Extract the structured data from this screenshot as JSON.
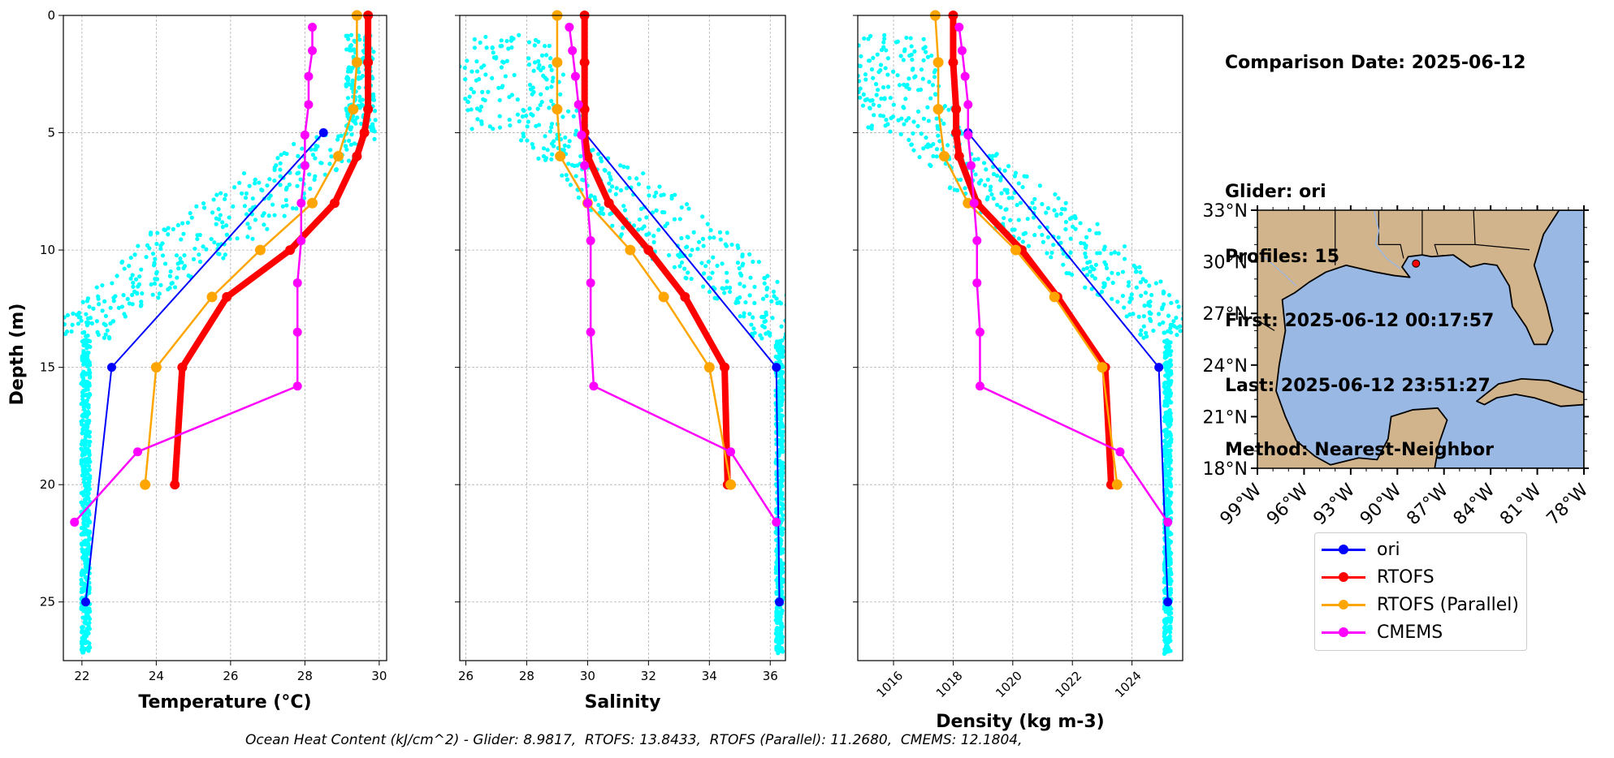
{
  "info": {
    "comparison_date": "Comparison Date: 2025-06-12",
    "glider": "Glider: ori",
    "profiles": "Profiles: 15",
    "first": "First: 2025-06-12 00:17:57",
    "last": "Last: 2025-06-12 23:51:27",
    "method": "Method: Nearest-Neighbor"
  },
  "footer": "Ocean Heat Content (kJ/cm^2) - Glider: 8.9817,  RTOFS: 13.8433,  RTOFS (Parallel): 11.2680,  CMEMS: 12.1804,",
  "colors": {
    "glider_scatter": "#00ffff",
    "ori": "#0000ff",
    "rtofs": "#ff0000",
    "rtofs_parallel": "#ffa500",
    "cmems": "#ff00ff",
    "land": "#d2b48c",
    "ocean": "#99b8e3"
  },
  "legend": [
    {
      "label": "ori",
      "color": "#0000ff"
    },
    {
      "label": "RTOFS",
      "color": "#ff0000"
    },
    {
      "label": "RTOFS (Parallel)",
      "color": "#ffa500"
    },
    {
      "label": "CMEMS",
      "color": "#ff00ff"
    }
  ],
  "chart_data": [
    {
      "type": "line",
      "xlabel": "Temperature (°C)",
      "ylabel": "Depth (m)",
      "xlim": [
        21.5,
        30.2
      ],
      "ylim": [
        27.5,
        0
      ],
      "xticks": [
        22,
        24,
        26,
        28,
        30
      ],
      "yticks": [
        0,
        5,
        10,
        15,
        20,
        25
      ],
      "grid": true,
      "series": [
        {
          "name": "ori",
          "x": [
            28.5,
            22.8,
            22.1
          ],
          "y": [
            5,
            15,
            25
          ]
        },
        {
          "name": "RTOFS",
          "x": [
            29.7,
            29.7,
            29.7,
            29.6,
            29.4,
            28.8,
            27.6,
            25.9,
            24.7,
            24.5
          ],
          "y": [
            0,
            2,
            4,
            5,
            6,
            8,
            10,
            12,
            15,
            20
          ]
        },
        {
          "name": "RTOFS (Parallel)",
          "x": [
            29.4,
            29.4,
            29.3,
            28.9,
            28.2,
            26.8,
            25.5,
            24.0,
            23.7
          ],
          "y": [
            0,
            2,
            4,
            6,
            8,
            10,
            12,
            15,
            20
          ]
        },
        {
          "name": "CMEMS",
          "x": [
            28.2,
            28.2,
            28.1,
            28.1,
            28.0,
            28.0,
            27.9,
            27.9,
            27.8,
            27.8,
            27.8,
            23.5,
            21.8
          ],
          "y": [
            0.5,
            1.5,
            2.6,
            3.8,
            5.1,
            6.4,
            8.0,
            9.6,
            11.4,
            13.5,
            15.8,
            18.6,
            21.6
          ]
        }
      ]
    },
    {
      "type": "line",
      "xlabel": "Salinity",
      "xlim": [
        25.8,
        36.5
      ],
      "ylim": [
        27.5,
        0
      ],
      "xticks": [
        26,
        28,
        30,
        32,
        34,
        36
      ],
      "yticks": [
        0,
        5,
        10,
        15,
        20,
        25
      ],
      "grid": true,
      "series": [
        {
          "name": "ori",
          "x": [
            29.9,
            36.2,
            36.3
          ],
          "y": [
            5,
            15,
            25
          ]
        },
        {
          "name": "RTOFS",
          "x": [
            29.9,
            29.9,
            29.9,
            29.9,
            30.0,
            30.7,
            32.0,
            33.2,
            34.5,
            34.6
          ],
          "y": [
            0,
            2,
            4,
            5,
            6,
            8,
            10,
            12,
            15,
            20
          ]
        },
        {
          "name": "RTOFS (Parallel)",
          "x": [
            29.0,
            29.0,
            29.0,
            29.1,
            30.0,
            31.4,
            32.5,
            34.0,
            34.7
          ],
          "y": [
            0,
            2,
            4,
            6,
            8,
            10,
            12,
            15,
            20
          ]
        },
        {
          "name": "CMEMS",
          "x": [
            29.4,
            29.5,
            29.6,
            29.7,
            29.8,
            29.9,
            30.0,
            30.1,
            30.1,
            30.1,
            30.2,
            34.7,
            36.2
          ],
          "y": [
            0.5,
            1.5,
            2.6,
            3.8,
            5.1,
            6.4,
            8.0,
            9.6,
            11.4,
            13.5,
            15.8,
            18.6,
            21.6
          ]
        }
      ]
    },
    {
      "type": "line",
      "xlabel": "Density (kg m-3)",
      "xlim": [
        1014.8,
        1025.7
      ],
      "ylim": [
        27.5,
        0
      ],
      "xticks": [
        1016,
        1018,
        1020,
        1022,
        1024
      ],
      "yticks": [
        0,
        5,
        10,
        15,
        20,
        25
      ],
      "grid": true,
      "series": [
        {
          "name": "ori",
          "x": [
            1018.5,
            1024.9,
            1025.2
          ],
          "y": [
            5,
            15,
            25
          ]
        },
        {
          "name": "RTOFS",
          "x": [
            1018.0,
            1018.0,
            1018.1,
            1018.1,
            1018.2,
            1018.8,
            1020.3,
            1021.5,
            1023.1,
            1023.3
          ],
          "y": [
            0,
            2,
            4,
            5,
            6,
            8,
            10,
            12,
            15,
            20
          ]
        },
        {
          "name": "RTOFS (Parallel)",
          "x": [
            1017.4,
            1017.5,
            1017.5,
            1017.7,
            1018.5,
            1020.1,
            1021.4,
            1023.0,
            1023.5
          ],
          "y": [
            0,
            2,
            4,
            6,
            8,
            10,
            12,
            15,
            20
          ]
        },
        {
          "name": "CMEMS",
          "x": [
            1018.2,
            1018.3,
            1018.4,
            1018.5,
            1018.5,
            1018.6,
            1018.7,
            1018.8,
            1018.8,
            1018.9,
            1018.9,
            1023.6,
            1025.2
          ],
          "y": [
            0.5,
            1.5,
            2.6,
            3.8,
            5.1,
            6.4,
            8.0,
            9.6,
            11.4,
            13.5,
            15.8,
            18.6,
            21.6
          ]
        }
      ]
    },
    {
      "type": "map",
      "lon_range": [
        -99,
        -78
      ],
      "lat_range": [
        18,
        33
      ],
      "xticks": [
        "99°W",
        "96°W",
        "93°W",
        "90°W",
        "87°W",
        "84°W",
        "81°W",
        "78°W"
      ],
      "yticks": [
        "18°N",
        "21°N",
        "24°N",
        "27°N",
        "30°N",
        "33°N"
      ],
      "marker": {
        "lon": -88.8,
        "lat": 29.9,
        "color": "#ff0000"
      }
    }
  ]
}
